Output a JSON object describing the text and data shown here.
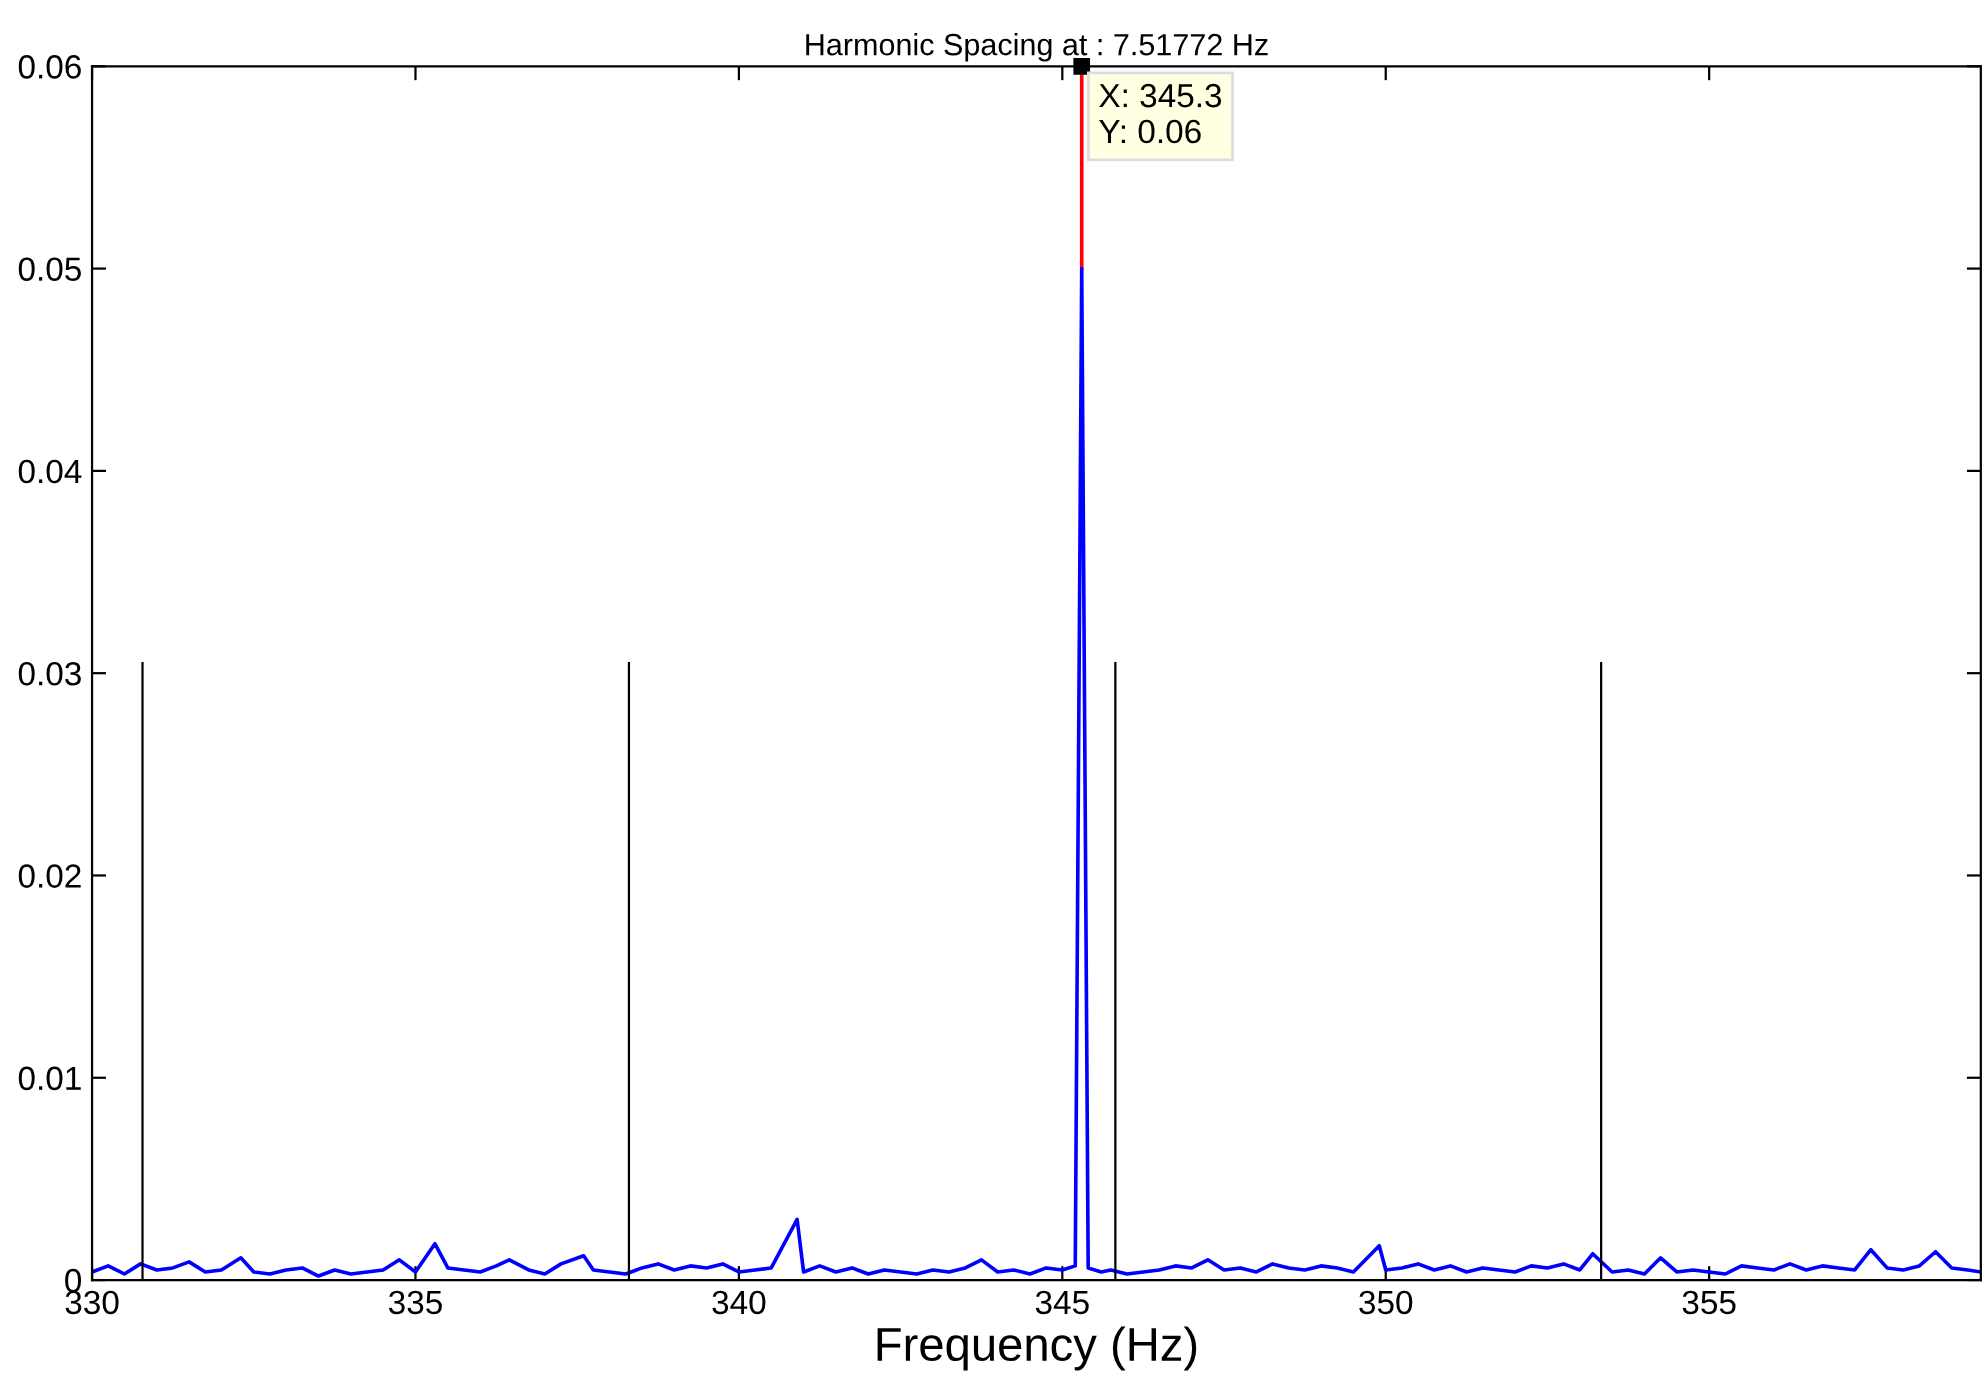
{
  "chart_data": {
    "type": "line",
    "title": "Harmonic Spacing at : 7.51772 Hz",
    "xlabel": "Frequency (Hz)",
    "xlim": [
      330,
      359.2
    ],
    "xticks": [
      330,
      335,
      340,
      345,
      350,
      355
    ],
    "ylim": [
      0,
      0.06
    ],
    "yticks": [
      0,
      0.01,
      0.02,
      0.03,
      0.04,
      0.05,
      0.06
    ],
    "grid": false,
    "legend": false,
    "line_style": "solid",
    "series": [
      {
        "color": "#ff0000",
        "x": [
          345.3,
          345.3
        ],
        "values": [
          0.05,
          0.06
        ]
      },
      {
        "color": "#0000ff",
        "x": [
          330.0,
          330.25,
          330.5,
          330.75,
          331.0,
          331.25,
          331.5,
          331.75,
          332.0,
          332.3,
          332.5,
          332.75,
          333.0,
          333.25,
          333.5,
          333.75,
          334.0,
          334.25,
          334.5,
          334.75,
          335.0,
          335.3,
          335.5,
          335.75,
          336.0,
          336.25,
          336.45,
          336.75,
          337.0,
          337.25,
          337.6,
          337.75,
          338.0,
          338.25,
          338.5,
          338.75,
          339.0,
          339.25,
          339.5,
          339.75,
          340.0,
          340.25,
          340.5,
          340.9,
          341.0,
          341.25,
          341.5,
          341.75,
          342.0,
          342.25,
          342.5,
          342.75,
          343.0,
          343.25,
          343.5,
          343.75,
          344.0,
          344.25,
          344.5,
          344.75,
          345.0,
          345.2,
          345.3,
          345.4,
          345.6,
          345.75,
          346.0,
          346.25,
          346.5,
          346.75,
          347.0,
          347.25,
          347.5,
          347.75,
          348.0,
          348.25,
          348.5,
          348.75,
          349.0,
          349.25,
          349.5,
          349.9,
          350.0,
          350.25,
          350.5,
          350.75,
          351.0,
          351.25,
          351.5,
          351.75,
          352.0,
          352.25,
          352.5,
          352.75,
          353.0,
          353.2,
          353.5,
          353.75,
          354.0,
          354.25,
          354.5,
          354.75,
          355.0,
          355.25,
          355.5,
          355.75,
          356.0,
          356.25,
          356.5,
          356.75,
          357.0,
          357.25,
          357.5,
          357.75,
          358.0,
          358.25,
          358.5,
          358.75,
          359.0,
          359.2
        ],
        "values": [
          0.0004,
          0.0007,
          0.0003,
          0.0008,
          0.0005,
          0.0006,
          0.0009,
          0.0004,
          0.0005,
          0.0011,
          0.0004,
          0.0003,
          0.0005,
          0.0006,
          0.0002,
          0.0005,
          0.0003,
          0.0004,
          0.0005,
          0.001,
          0.0004,
          0.0018,
          0.0006,
          0.0005,
          0.0004,
          0.0007,
          0.001,
          0.0005,
          0.0003,
          0.0008,
          0.0012,
          0.0005,
          0.0004,
          0.0003,
          0.0006,
          0.0008,
          0.0005,
          0.0007,
          0.0006,
          0.0008,
          0.0004,
          0.0005,
          0.0006,
          0.003,
          0.0004,
          0.0007,
          0.0004,
          0.0006,
          0.0003,
          0.0005,
          0.0004,
          0.0003,
          0.0005,
          0.0004,
          0.0006,
          0.001,
          0.0004,
          0.0005,
          0.0003,
          0.0006,
          0.0005,
          0.0007,
          0.05,
          0.0006,
          0.0004,
          0.0005,
          0.0003,
          0.0004,
          0.0005,
          0.0007,
          0.0006,
          0.001,
          0.0005,
          0.0006,
          0.0004,
          0.0008,
          0.0006,
          0.0005,
          0.0007,
          0.0006,
          0.0004,
          0.0017,
          0.0005,
          0.0006,
          0.0008,
          0.0005,
          0.0007,
          0.0004,
          0.0006,
          0.0005,
          0.0004,
          0.0007,
          0.0006,
          0.0008,
          0.0005,
          0.0013,
          0.0004,
          0.0005,
          0.0003,
          0.0011,
          0.0004,
          0.0005,
          0.0004,
          0.0003,
          0.0007,
          0.0006,
          0.0005,
          0.0008,
          0.0005,
          0.0007,
          0.0006,
          0.0005,
          0.0015,
          0.0006,
          0.0005,
          0.0007,
          0.0014,
          0.0006,
          0.0005,
          0.0004
        ]
      },
      {
        "color": "#000000",
        "x": [
          330.78,
          330.78
        ],
        "values": [
          0,
          0.0305
        ]
      },
      {
        "color": "#000000",
        "x": [
          338.3,
          338.3
        ],
        "values": [
          0,
          0.0305
        ]
      },
      {
        "color": "#000000",
        "x": [
          345.82,
          345.82
        ],
        "values": [
          0,
          0.0305
        ]
      },
      {
        "color": "#000000",
        "x": [
          353.33,
          353.33
        ],
        "values": [
          0,
          0.0305
        ]
      }
    ],
    "annotations": [
      {
        "text": "X: 345.3\nY: 0.06",
        "x": 345.3,
        "y": 0.06
      }
    ]
  }
}
